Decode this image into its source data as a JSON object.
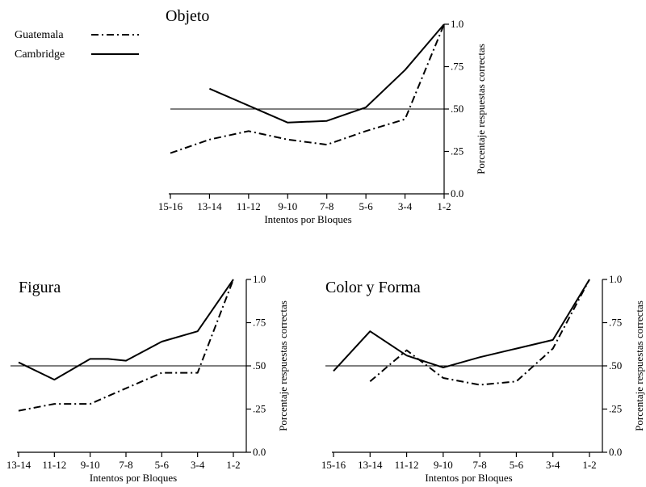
{
  "legend": {
    "items": [
      {
        "name": "Guatemala",
        "style": "dashdot"
      },
      {
        "name": "Cambridge",
        "style": "solid"
      }
    ]
  },
  "chart_data": [
    {
      "type": "line",
      "title": "Objeto",
      "xlabel": "Intentos por Bloques",
      "ylabel": "Porcentaje respuestas correctas",
      "ylim": [
        0.0,
        1.0
      ],
      "y_ticks": [
        "0.0",
        ".25",
        ".50",
        ".75",
        "1.0"
      ],
      "categories": [
        "15-16",
        "13-14",
        "11-12",
        "9-10",
        "7-8",
        "5-6",
        "3-4",
        "1-2"
      ],
      "reference_line": 0.5,
      "series": [
        {
          "name": "Guatemala",
          "style": "dashdot",
          "points": [
            [
              0.0,
              0.24
            ],
            [
              1.0,
              0.32
            ],
            [
              2.0,
              0.37
            ],
            [
              3.0,
              0.32
            ],
            [
              4.0,
              0.29
            ],
            [
              5.0,
              0.37
            ],
            [
              6.0,
              0.44
            ],
            [
              7.0,
              1.0
            ]
          ]
        },
        {
          "name": "Cambridge",
          "style": "solid",
          "points": [
            [
              1.0,
              0.62
            ],
            [
              2.0,
              0.52
            ],
            [
              3.0,
              0.42
            ],
            [
              4.0,
              0.43
            ],
            [
              5.0,
              0.51
            ],
            [
              6.0,
              0.73
            ],
            [
              7.0,
              1.0
            ]
          ]
        }
      ]
    },
    {
      "type": "line",
      "title": "Figura",
      "xlabel": "Intentos por Bloques",
      "ylabel": "Porcentaje respuestas correctas",
      "ylim": [
        0.0,
        1.0
      ],
      "y_ticks": [
        "0.0",
        ".25",
        ".50",
        ".75",
        "1.0"
      ],
      "categories": [
        "13-14",
        "11-12",
        "9-10",
        "7-8",
        "5-6",
        "3-4",
        "1-2"
      ],
      "reference_line": 0.5,
      "series": [
        {
          "name": "Guatemala",
          "style": "dashdot",
          "points": [
            [
              0.0,
              0.24
            ],
            [
              1.0,
              0.28
            ],
            [
              2.0,
              0.28
            ],
            [
              3.0,
              0.37
            ],
            [
              4.0,
              0.46
            ],
            [
              5.0,
              0.46
            ],
            [
              6.0,
              1.0
            ]
          ]
        },
        {
          "name": "Cambridge",
          "style": "solid",
          "points": [
            [
              0.0,
              0.52
            ],
            [
              1.0,
              0.42
            ],
            [
              2.0,
              0.54
            ],
            [
              2.5,
              0.54
            ],
            [
              3.0,
              0.53
            ],
            [
              4.0,
              0.64
            ],
            [
              5.0,
              0.7
            ],
            [
              6.0,
              1.0
            ]
          ]
        }
      ]
    },
    {
      "type": "line",
      "title": "Color y Forma",
      "xlabel": "Intentos por Bloques",
      "ylabel": "Porcentaje respuestas correctas",
      "ylim": [
        0.0,
        1.0
      ],
      "y_ticks": [
        "0.0",
        ".25",
        ".50",
        ".75",
        "1.0"
      ],
      "categories": [
        "15-16",
        "13-14",
        "11-12",
        "9-10",
        "7-8",
        "5-6",
        "3-4",
        "1-2"
      ],
      "reference_line": 0.5,
      "series": [
        {
          "name": "Guatemala",
          "style": "dashdot",
          "points": [
            [
              1.0,
              0.41
            ],
            [
              2.0,
              0.59
            ],
            [
              3.0,
              0.43
            ],
            [
              4.0,
              0.39
            ],
            [
              5.0,
              0.41
            ],
            [
              6.0,
              0.6
            ],
            [
              7.0,
              1.0
            ]
          ]
        },
        {
          "name": "Cambridge",
          "style": "solid",
          "points": [
            [
              0.0,
              0.47
            ],
            [
              1.0,
              0.7
            ],
            [
              2.0,
              0.56
            ],
            [
              3.0,
              0.49
            ],
            [
              4.0,
              0.55
            ],
            [
              5.0,
              0.6
            ],
            [
              6.0,
              0.65
            ],
            [
              7.0,
              1.0
            ]
          ]
        }
      ]
    }
  ]
}
